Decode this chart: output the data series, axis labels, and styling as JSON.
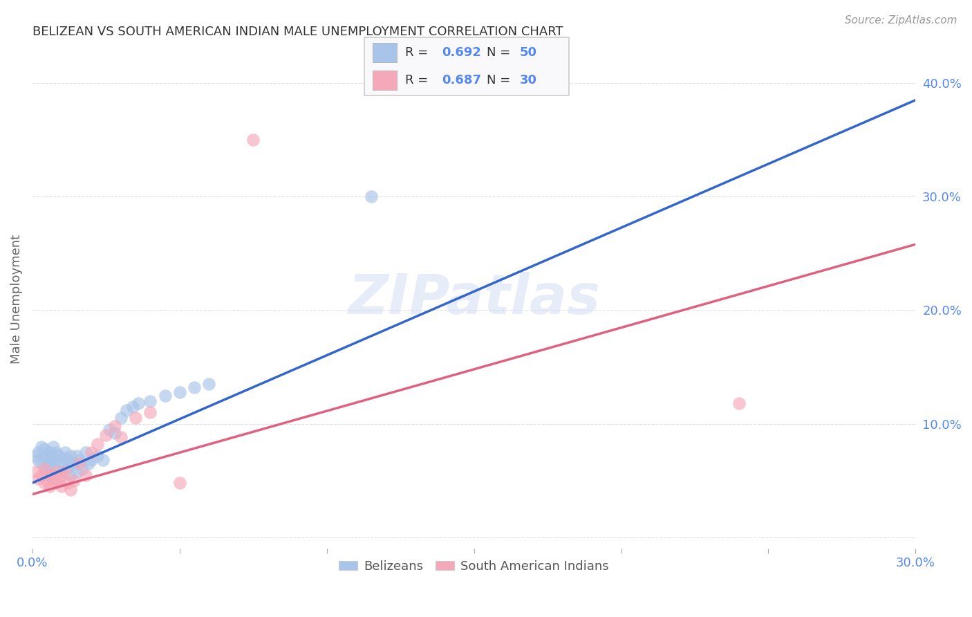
{
  "title": "BELIZEAN VS SOUTH AMERICAN INDIAN MALE UNEMPLOYMENT CORRELATION CHART",
  "source": "Source: ZipAtlas.com",
  "ylabel": "Male Unemployment",
  "xlim": [
    0.0,
    0.3
  ],
  "ylim": [
    -0.01,
    0.43
  ],
  "xtick_positions": [
    0.0,
    0.05,
    0.1,
    0.15,
    0.2,
    0.25,
    0.3
  ],
  "xtick_labels": [
    "0.0%",
    "",
    "",
    "",
    "",
    "",
    "30.0%"
  ],
  "ytick_positions": [
    0.0,
    0.1,
    0.2,
    0.3,
    0.4
  ],
  "ytick_labels": [
    "",
    "10.0%",
    "20.0%",
    "30.0%",
    "40.0%"
  ],
  "blue_color": "#a8c4e8",
  "blue_line_color": "#3366cc",
  "gray_dashed_color": "#bbbbbb",
  "pink_color": "#f5a8b8",
  "pink_line_color": "#e06080",
  "watermark": "ZIPatlas",
  "legend_r1_r": "0.692",
  "legend_r1_n": "50",
  "legend_r2_r": "0.687",
  "legend_r2_n": "30",
  "belizean_scatter": [
    [
      0.001,
      0.072
    ],
    [
      0.002,
      0.068
    ],
    [
      0.002,
      0.075
    ],
    [
      0.003,
      0.08
    ],
    [
      0.003,
      0.065
    ],
    [
      0.004,
      0.07
    ],
    [
      0.004,
      0.078
    ],
    [
      0.005,
      0.065
    ],
    [
      0.005,
      0.072
    ],
    [
      0.005,
      0.06
    ],
    [
      0.006,
      0.068
    ],
    [
      0.006,
      0.075
    ],
    [
      0.006,
      0.062
    ],
    [
      0.007,
      0.07
    ],
    [
      0.007,
      0.055
    ],
    [
      0.007,
      0.08
    ],
    [
      0.008,
      0.068
    ],
    [
      0.008,
      0.075
    ],
    [
      0.009,
      0.06
    ],
    [
      0.009,
      0.072
    ],
    [
      0.01,
      0.065
    ],
    [
      0.01,
      0.058
    ],
    [
      0.011,
      0.07
    ],
    [
      0.011,
      0.075
    ],
    [
      0.012,
      0.062
    ],
    [
      0.012,
      0.068
    ],
    [
      0.013,
      0.072
    ],
    [
      0.013,
      0.055
    ],
    [
      0.014,
      0.065
    ],
    [
      0.015,
      0.058
    ],
    [
      0.015,
      0.072
    ],
    [
      0.016,
      0.068
    ],
    [
      0.017,
      0.06
    ],
    [
      0.018,
      0.075
    ],
    [
      0.019,
      0.065
    ],
    [
      0.02,
      0.068
    ],
    [
      0.022,
      0.072
    ],
    [
      0.024,
      0.068
    ],
    [
      0.026,
      0.095
    ],
    [
      0.028,
      0.092
    ],
    [
      0.03,
      0.105
    ],
    [
      0.032,
      0.112
    ],
    [
      0.034,
      0.115
    ],
    [
      0.036,
      0.118
    ],
    [
      0.04,
      0.12
    ],
    [
      0.045,
      0.125
    ],
    [
      0.05,
      0.128
    ],
    [
      0.055,
      0.132
    ],
    [
      0.06,
      0.135
    ],
    [
      0.115,
      0.3
    ]
  ],
  "sam_scatter": [
    [
      0.001,
      0.058
    ],
    [
      0.002,
      0.052
    ],
    [
      0.003,
      0.055
    ],
    [
      0.004,
      0.048
    ],
    [
      0.004,
      0.06
    ],
    [
      0.005,
      0.05
    ],
    [
      0.006,
      0.055
    ],
    [
      0.006,
      0.045
    ],
    [
      0.007,
      0.052
    ],
    [
      0.008,
      0.048
    ],
    [
      0.008,
      0.058
    ],
    [
      0.009,
      0.052
    ],
    [
      0.01,
      0.045
    ],
    [
      0.01,
      0.055
    ],
    [
      0.011,
      0.058
    ],
    [
      0.012,
      0.048
    ],
    [
      0.013,
      0.042
    ],
    [
      0.014,
      0.05
    ],
    [
      0.016,
      0.065
    ],
    [
      0.018,
      0.055
    ],
    [
      0.02,
      0.075
    ],
    [
      0.022,
      0.082
    ],
    [
      0.025,
      0.09
    ],
    [
      0.028,
      0.098
    ],
    [
      0.03,
      0.088
    ],
    [
      0.035,
      0.105
    ],
    [
      0.04,
      0.11
    ],
    [
      0.05,
      0.048
    ],
    [
      0.075,
      0.35
    ],
    [
      0.24,
      0.118
    ]
  ],
  "blue_trend_x": [
    0.0,
    0.3
  ],
  "blue_trend_y": [
    0.048,
    0.385
  ],
  "pink_trend_x": [
    0.0,
    0.3
  ],
  "pink_trend_y": [
    0.038,
    0.258
  ],
  "background_color": "#ffffff",
  "grid_color": "#dddddd",
  "title_color": "#333333",
  "axis_tick_color": "#5588ee"
}
